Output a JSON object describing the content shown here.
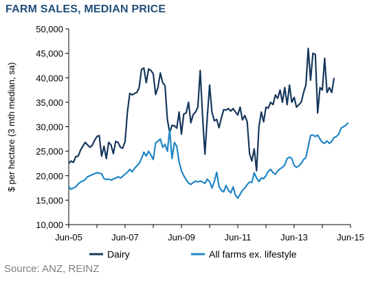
{
  "title": "FARM SALES, MEDIAN PRICE",
  "source": "Source: ANZ, REINZ",
  "colors": {
    "dairy": "#16365c",
    "all_farms": "#1f85c4",
    "axis": "#000000"
  },
  "chart_data": {
    "type": "line",
    "title": "FARM SALES, MEDIAN PRICE",
    "xlabel": "",
    "ylabel": "$ per hectare (3 mth median, sa)",
    "ylim": [
      10000,
      50000
    ],
    "xlim": [
      "2005-06",
      "2015-06"
    ],
    "y_ticks": [
      "10,000",
      "15,000",
      "20,000",
      "25,000",
      "30,000",
      "35,000",
      "40,000",
      "45,000",
      "50,000"
    ],
    "x_ticks": [
      "Jun-05",
      "Jun-07",
      "Jun-09",
      "Jun-11",
      "Jun-13",
      "Jun-15"
    ],
    "grid": false,
    "legend": "bottom",
    "series": [
      {
        "name": "Dairy",
        "color": "#16365c",
        "points": [
          [
            "2005-06",
            22500
          ],
          [
            "2005-07",
            23000
          ],
          [
            "2005-08",
            22700
          ],
          [
            "2005-09",
            23900
          ],
          [
            "2005-10",
            24000
          ],
          [
            "2005-11",
            25200
          ],
          [
            "2005-12",
            26000
          ],
          [
            "2006-01",
            26800
          ],
          [
            "2006-02",
            26300
          ],
          [
            "2006-03",
            25800
          ],
          [
            "2006-04",
            26200
          ],
          [
            "2006-05",
            27200
          ],
          [
            "2006-06",
            28000
          ],
          [
            "2006-07",
            28200
          ],
          [
            "2006-08",
            24000
          ],
          [
            "2006-09",
            26000
          ],
          [
            "2006-10",
            23500
          ],
          [
            "2006-11",
            26800
          ],
          [
            "2006-12",
            26300
          ],
          [
            "2007-01",
            24500
          ],
          [
            "2007-02",
            27000
          ],
          [
            "2007-03",
            26800
          ],
          [
            "2007-04",
            25800
          ],
          [
            "2007-05",
            25600
          ],
          [
            "2007-06",
            27000
          ],
          [
            "2007-07",
            33000
          ],
          [
            "2007-08",
            36800
          ],
          [
            "2007-09",
            36500
          ],
          [
            "2007-10",
            36800
          ],
          [
            "2007-11",
            37000
          ],
          [
            "2007-12",
            38000
          ],
          [
            "2008-01",
            41700
          ],
          [
            "2008-02",
            42000
          ],
          [
            "2008-03",
            39000
          ],
          [
            "2008-04",
            41800
          ],
          [
            "2008-05",
            41500
          ],
          [
            "2008-06",
            40800
          ],
          [
            "2008-07",
            36600
          ],
          [
            "2008-08",
            38000
          ],
          [
            "2008-09",
            41000
          ],
          [
            "2008-10",
            39000
          ],
          [
            "2008-11",
            38400
          ],
          [
            "2008-12",
            31500
          ],
          [
            "2009-01",
            28800
          ],
          [
            "2009-02",
            30300
          ],
          [
            "2009-03",
            30200
          ],
          [
            "2009-04",
            29700
          ],
          [
            "2009-05",
            33000
          ],
          [
            "2009-06",
            28500
          ],
          [
            "2009-07",
            32600
          ],
          [
            "2009-08",
            32800
          ],
          [
            "2009-09",
            35000
          ],
          [
            "2009-10",
            30800
          ],
          [
            "2009-11",
            32500
          ],
          [
            "2009-12",
            33000
          ],
          [
            "2010-01",
            34000
          ],
          [
            "2010-02",
            41500
          ],
          [
            "2010-03",
            32000
          ],
          [
            "2010-04",
            24400
          ],
          [
            "2010-05",
            32000
          ],
          [
            "2010-06",
            38500
          ],
          [
            "2010-07",
            33000
          ],
          [
            "2010-08",
            31200
          ],
          [
            "2010-09",
            31500
          ],
          [
            "2010-10",
            29800
          ],
          [
            "2010-11",
            31800
          ],
          [
            "2010-12",
            33500
          ],
          [
            "2011-01",
            33400
          ],
          [
            "2011-02",
            33700
          ],
          [
            "2011-03",
            33200
          ],
          [
            "2011-04",
            33700
          ],
          [
            "2011-05",
            33000
          ],
          [
            "2011-06",
            32400
          ],
          [
            "2011-07",
            34000
          ],
          [
            "2011-08",
            31400
          ],
          [
            "2011-09",
            32300
          ],
          [
            "2011-10",
            31000
          ],
          [
            "2011-11",
            24500
          ],
          [
            "2011-12",
            23000
          ],
          [
            "2012-01",
            25500
          ],
          [
            "2012-02",
            21000
          ],
          [
            "2012-03",
            30000
          ],
          [
            "2012-04",
            33000
          ],
          [
            "2012-05",
            31000
          ],
          [
            "2012-06",
            34000
          ],
          [
            "2012-07",
            33800
          ],
          [
            "2012-08",
            35000
          ],
          [
            "2012-09",
            34500
          ],
          [
            "2012-10",
            36500
          ],
          [
            "2012-11",
            35800
          ],
          [
            "2012-12",
            37500
          ],
          [
            "2013-01",
            35000
          ],
          [
            "2013-02",
            38000
          ],
          [
            "2013-03",
            34500
          ],
          [
            "2013-04",
            38500
          ],
          [
            "2013-05",
            35000
          ],
          [
            "2013-06",
            36000
          ],
          [
            "2013-07",
            34000
          ],
          [
            "2013-08",
            34500
          ],
          [
            "2013-09",
            35000
          ],
          [
            "2013-10",
            37000
          ],
          [
            "2013-11",
            38500
          ],
          [
            "2013-12",
            46000
          ],
          [
            "2014-01",
            39500
          ],
          [
            "2014-02",
            45000
          ],
          [
            "2014-03",
            44800
          ],
          [
            "2014-04",
            32800
          ],
          [
            "2014-05",
            38000
          ],
          [
            "2014-06",
            37500
          ],
          [
            "2014-07",
            44000
          ],
          [
            "2014-08",
            37000
          ],
          [
            "2014-09",
            38000
          ],
          [
            "2014-10",
            37000
          ],
          [
            "2014-11",
            40000
          ]
        ]
      },
      {
        "name": "All farms ex. lifestyle",
        "color": "#1f85c4",
        "points": [
          [
            "2005-06",
            17800
          ],
          [
            "2005-07",
            17200
          ],
          [
            "2005-08",
            17500
          ],
          [
            "2005-09",
            17700
          ],
          [
            "2005-10",
            18300
          ],
          [
            "2005-11",
            18700
          ],
          [
            "2005-12",
            18900
          ],
          [
            "2006-01",
            19200
          ],
          [
            "2006-02",
            19800
          ],
          [
            "2006-03",
            20000
          ],
          [
            "2006-04",
            20200
          ],
          [
            "2006-05",
            20400
          ],
          [
            "2006-06",
            20600
          ],
          [
            "2006-07",
            20500
          ],
          [
            "2006-08",
            20400
          ],
          [
            "2006-09",
            19400
          ],
          [
            "2006-10",
            19200
          ],
          [
            "2006-11",
            19300
          ],
          [
            "2006-12",
            19100
          ],
          [
            "2007-01",
            19300
          ],
          [
            "2007-02",
            19500
          ],
          [
            "2007-03",
            19800
          ],
          [
            "2007-04",
            19500
          ],
          [
            "2007-05",
            19900
          ],
          [
            "2007-06",
            20300
          ],
          [
            "2007-07",
            20700
          ],
          [
            "2007-08",
            21300
          ],
          [
            "2007-09",
            20800
          ],
          [
            "2007-10",
            21500
          ],
          [
            "2007-11",
            22000
          ],
          [
            "2007-12",
            22500
          ],
          [
            "2008-01",
            23500
          ],
          [
            "2008-02",
            24800
          ],
          [
            "2008-03",
            24000
          ],
          [
            "2008-04",
            25000
          ],
          [
            "2008-05",
            24200
          ],
          [
            "2008-06",
            23300
          ],
          [
            "2008-07",
            26700
          ],
          [
            "2008-08",
            27000
          ],
          [
            "2008-09",
            27500
          ],
          [
            "2008-10",
            25800
          ],
          [
            "2008-11",
            26400
          ],
          [
            "2008-12",
            25000
          ],
          [
            "2009-01",
            29300
          ],
          [
            "2009-02",
            23500
          ],
          [
            "2009-03",
            26800
          ],
          [
            "2009-04",
            26000
          ],
          [
            "2009-05",
            22800
          ],
          [
            "2009-06",
            21000
          ],
          [
            "2009-07",
            20000
          ],
          [
            "2009-08",
            19200
          ],
          [
            "2009-09",
            18500
          ],
          [
            "2009-10",
            18200
          ],
          [
            "2009-11",
            18600
          ],
          [
            "2009-12",
            18900
          ],
          [
            "2010-01",
            18700
          ],
          [
            "2010-02",
            18900
          ],
          [
            "2010-03",
            18700
          ],
          [
            "2010-04",
            18400
          ],
          [
            "2010-05",
            19300
          ],
          [
            "2010-06",
            18800
          ],
          [
            "2010-07",
            17500
          ],
          [
            "2010-08",
            18800
          ],
          [
            "2010-09",
            20700
          ],
          [
            "2010-10",
            17800
          ],
          [
            "2010-11",
            17000
          ],
          [
            "2010-12",
            16700
          ],
          [
            "2011-01",
            18000
          ],
          [
            "2011-02",
            17000
          ],
          [
            "2011-03",
            16500
          ],
          [
            "2011-04",
            17700
          ],
          [
            "2011-05",
            16000
          ],
          [
            "2011-06",
            15400
          ],
          [
            "2011-07",
            16200
          ],
          [
            "2011-08",
            17000
          ],
          [
            "2011-09",
            17500
          ],
          [
            "2011-10",
            18200
          ],
          [
            "2011-11",
            18700
          ],
          [
            "2011-12",
            18600
          ],
          [
            "2012-01",
            20600
          ],
          [
            "2012-02",
            19500
          ],
          [
            "2012-03",
            18800
          ],
          [
            "2012-04",
            19500
          ],
          [
            "2012-05",
            19400
          ],
          [
            "2012-06",
            20000
          ],
          [
            "2012-07",
            20900
          ],
          [
            "2012-08",
            21300
          ],
          [
            "2012-09",
            20600
          ],
          [
            "2012-10",
            20300
          ],
          [
            "2012-11",
            21000
          ],
          [
            "2012-12",
            21400
          ],
          [
            "2013-01",
            21700
          ],
          [
            "2013-02",
            22200
          ],
          [
            "2013-03",
            23500
          ],
          [
            "2013-04",
            23800
          ],
          [
            "2013-05",
            23500
          ],
          [
            "2013-06",
            22100
          ],
          [
            "2013-07",
            21700
          ],
          [
            "2013-08",
            22000
          ],
          [
            "2013-09",
            22500
          ],
          [
            "2013-10",
            23300
          ],
          [
            "2013-11",
            23700
          ],
          [
            "2013-12",
            26000
          ],
          [
            "2014-01",
            28200
          ],
          [
            "2014-02",
            28300
          ],
          [
            "2014-03",
            28000
          ],
          [
            "2014-04",
            28300
          ],
          [
            "2014-05",
            27500
          ],
          [
            "2014-06",
            26800
          ],
          [
            "2014-07",
            26600
          ],
          [
            "2014-08",
            27100
          ],
          [
            "2014-09",
            26600
          ],
          [
            "2014-10",
            27000
          ],
          [
            "2014-11",
            27800
          ],
          [
            "2014-12",
            28000
          ],
          [
            "2015-01",
            28500
          ],
          [
            "2015-02",
            29700
          ],
          [
            "2015-03",
            30000
          ],
          [
            "2015-04",
            30300
          ],
          [
            "2015-05",
            30800
          ]
        ]
      }
    ]
  }
}
